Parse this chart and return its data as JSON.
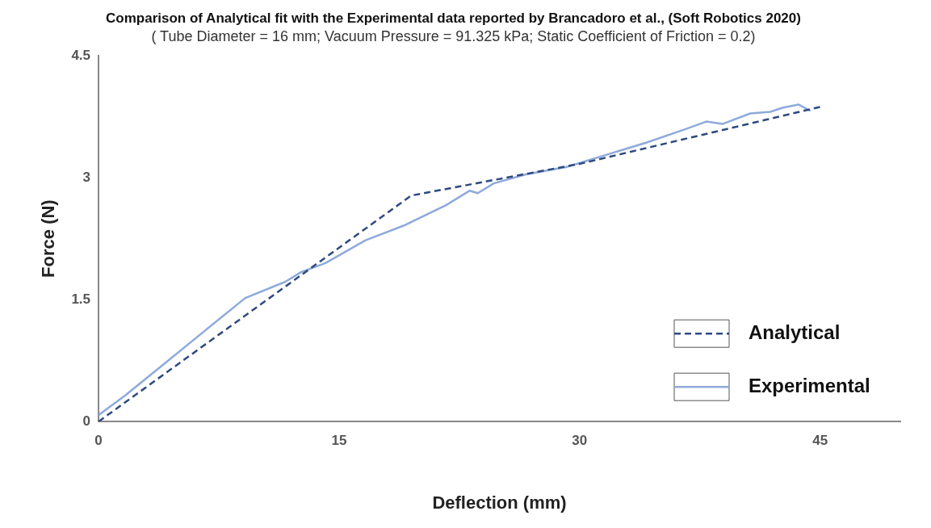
{
  "chart_data": {
    "type": "line",
    "title": "Comparison of Analytical fit with the Experimental data reported by Brancadoro et al., (Soft Robotics 2020)",
    "subtitle": "( Tube Diameter = 16 mm; Vacuum Pressure = 91.325 kPa; Static Coefficient of Friction = 0.2)",
    "xlabel": "Deflection (mm)",
    "ylabel": "Force (N)",
    "xlim": [
      0,
      50
    ],
    "xticks": [
      0,
      15,
      30,
      45
    ],
    "ylim": [
      0,
      4.5
    ],
    "yticks": [
      0,
      1.5,
      3,
      4.5
    ],
    "grid": false,
    "legend": "bottom right",
    "marker": "none",
    "series": [
      {
        "name": "Analytical",
        "color": "#2f4a7f",
        "line_style": "dashed",
        "x": [
          0,
          19.5,
          30,
          45
        ],
        "values": [
          0,
          2.78,
          3.17,
          3.87
        ]
      },
      {
        "name": "Experimental",
        "color": "#8eaadb",
        "line_style": "solid",
        "x": [
          0,
          1.65,
          4.15,
          6.65,
          9.15,
          11.65,
          12.65,
          14.15,
          16.65,
          19.15,
          21.65,
          23.15,
          23.65,
          24.65,
          26.65,
          29.15,
          31.65,
          34.15,
          36.65,
          37.9,
          38.9,
          40.65,
          41.9,
          42.65,
          43.65,
          44.4
        ],
        "values": [
          0.08,
          0.32,
          0.72,
          1.12,
          1.52,
          1.72,
          1.84,
          1.95,
          2.23,
          2.42,
          2.66,
          2.84,
          2.81,
          2.93,
          3.04,
          3.13,
          3.28,
          3.43,
          3.6,
          3.69,
          3.66,
          3.79,
          3.81,
          3.86,
          3.9,
          3.82
        ]
      }
    ]
  }
}
